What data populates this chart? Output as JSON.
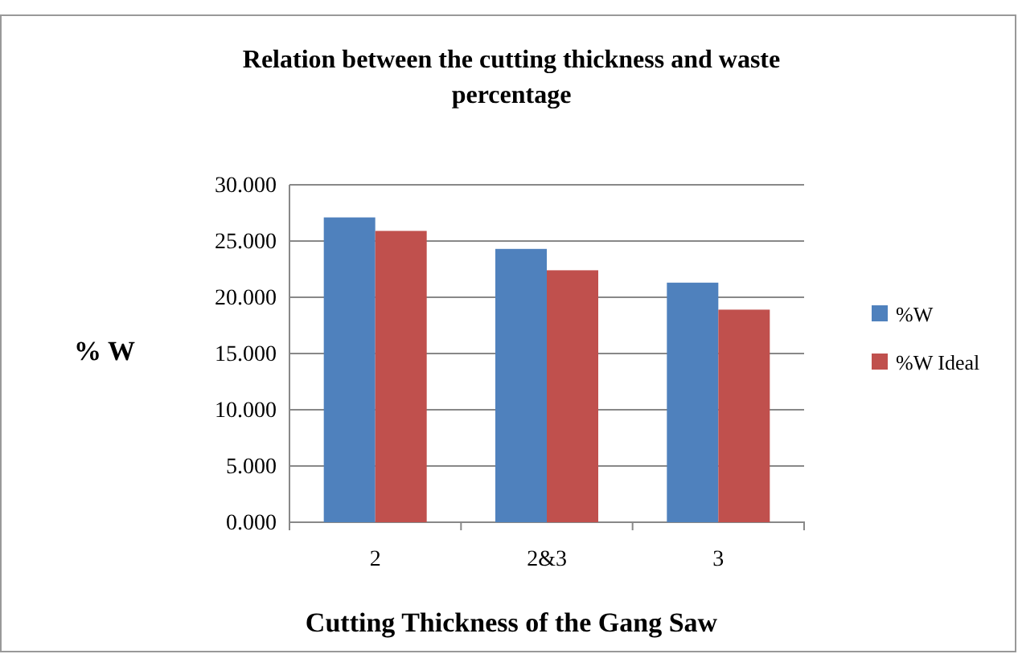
{
  "chart_data": {
    "type": "bar",
    "title": "Relation between the cutting thickness and waste percentage",
    "xlabel": "Cutting Thickness of the Gang Saw",
    "ylabel": "% W",
    "categories": [
      "2",
      "2&3",
      "3"
    ],
    "series": [
      {
        "name": "%W",
        "color": "#4f81bd",
        "values": [
          27.1,
          24.3,
          21.3
        ]
      },
      {
        "name": "%W Ideal",
        "color": "#c0504d",
        "values": [
          25.9,
          22.4,
          18.9
        ]
      }
    ],
    "ylim": [
      0,
      30
    ],
    "yticks": [
      {
        "value": 0,
        "label": "0.000"
      },
      {
        "value": 5,
        "label": "5.000"
      },
      {
        "value": 10,
        "label": "10.000"
      },
      {
        "value": 15,
        "label": "15.000"
      },
      {
        "value": 20,
        "label": "20.000"
      },
      {
        "value": 25,
        "label": "25.000"
      },
      {
        "value": 30,
        "label": "30.000"
      }
    ],
    "grid": "y",
    "legend": "right"
  }
}
